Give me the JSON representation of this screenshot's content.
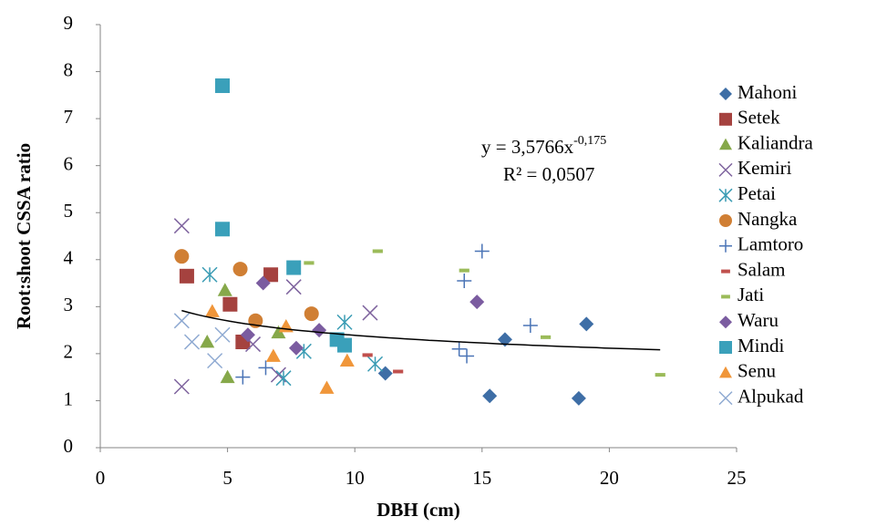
{
  "chart_data": {
    "type": "scatter",
    "x_label": "DBH (cm)",
    "y_label": "Root:shoot CSSA ratio",
    "xlim": [
      0,
      25
    ],
    "xticks": [
      0,
      5,
      10,
      15,
      20,
      25
    ],
    "ylim": [
      0,
      9
    ],
    "yticks": [
      0,
      1,
      2,
      3,
      4,
      5,
      6,
      7,
      8,
      9
    ],
    "legend": "right",
    "series": [
      {
        "name": "Mahoni",
        "color": "#3e6ea6",
        "marker": "diamond",
        "x": [
          11.2,
          15.3,
          15.9,
          18.8,
          19.1
        ],
        "values": [
          1.58,
          1.1,
          2.3,
          1.05,
          2.63
        ]
      },
      {
        "name": "Setek",
        "color": "#a5423f",
        "marker": "square",
        "x": [
          3.4,
          6.7,
          5.6,
          5.1
        ],
        "values": [
          3.65,
          3.68,
          2.25,
          3.05
        ]
      },
      {
        "name": "Kaliandra",
        "color": "#86a84a",
        "marker": "triangle",
        "x": [
          4.9,
          4.2,
          5.0,
          7.0
        ],
        "values": [
          3.35,
          2.25,
          1.5,
          2.45
        ]
      },
      {
        "name": "Kemiri",
        "color": "#7e639e",
        "marker": "x",
        "x": [
          3.2,
          3.2,
          7.6,
          10.6,
          7.0,
          6.0
        ],
        "values": [
          4.72,
          1.3,
          3.42,
          2.87,
          1.55,
          2.2
        ]
      },
      {
        "name": "Petai",
        "color": "#3a9cb4",
        "marker": "asterisk",
        "x": [
          4.3,
          9.6,
          10.8,
          7.2,
          8.0
        ],
        "values": [
          3.68,
          2.67,
          1.78,
          1.48,
          2.05
        ]
      },
      {
        "name": "Nangka",
        "color": "#d07f34",
        "marker": "circle",
        "x": [
          3.2,
          5.5,
          8.3,
          6.1
        ],
        "values": [
          4.07,
          3.8,
          2.85,
          2.7
        ]
      },
      {
        "name": "Lamtoro",
        "color": "#4a74b6",
        "marker": "plus",
        "x": [
          5.6,
          6.5,
          14.3,
          14.1,
          14.4,
          15.0,
          16.9
        ],
        "values": [
          1.5,
          1.7,
          3.55,
          2.1,
          1.95,
          4.18,
          2.6
        ]
      },
      {
        "name": "Salam",
        "color": "#c0504d",
        "marker": "dash",
        "x": [
          10.5,
          11.7
        ],
        "values": [
          1.97,
          1.62
        ]
      },
      {
        "name": "Jati",
        "color": "#9bbb59",
        "marker": "dash",
        "x": [
          8.2,
          10.9,
          14.3,
          17.5,
          22.0
        ],
        "values": [
          3.93,
          4.18,
          3.77,
          2.35,
          1.55
        ]
      },
      {
        "name": "Waru",
        "color": "#7b5ca0",
        "marker": "diamond",
        "x": [
          6.4,
          7.7,
          8.6,
          14.8,
          5.8
        ],
        "values": [
          3.5,
          2.12,
          2.5,
          3.1,
          2.4
        ]
      },
      {
        "name": "Mindi",
        "color": "#3aa0ba",
        "marker": "square",
        "x": [
          4.8,
          4.8,
          7.6,
          9.3,
          9.6
        ],
        "values": [
          7.7,
          4.65,
          3.83,
          2.3,
          2.18
        ]
      },
      {
        "name": "Senu",
        "color": "#f0963a",
        "marker": "triangle",
        "x": [
          6.8,
          7.3,
          8.9,
          9.7,
          4.4
        ],
        "values": [
          1.95,
          2.58,
          1.27,
          1.85,
          2.9
        ]
      },
      {
        "name": "Alpukad",
        "color": "#8faad2",
        "marker": "x",
        "x": [
          3.2,
          3.6,
          4.5,
          4.8
        ],
        "values": [
          2.7,
          2.25,
          1.85,
          2.4
        ]
      }
    ],
    "trendline": {
      "equation_base": "y = 3,5766x",
      "equation_exponent": "-0,175",
      "r2": "R² = 0,0507",
      "coefficient": 3.5766,
      "exponent": -0.175,
      "x": [
        3.2,
        22
      ],
      "color": "#000000"
    }
  }
}
